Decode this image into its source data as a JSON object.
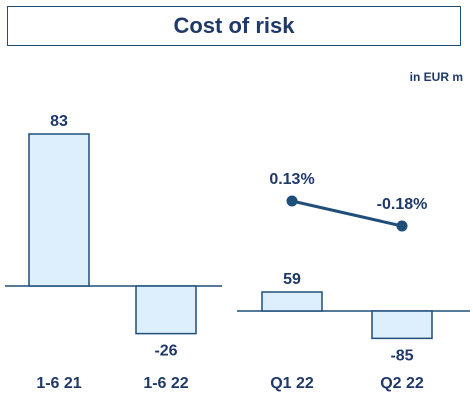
{
  "title": "Cost of risk",
  "unit": "in EUR m",
  "colors": {
    "bar_fill": "#ddeefc",
    "bar_stroke": "#1f4e79",
    "text": "#1f3a68",
    "line": "#1f4e79"
  },
  "chart_data": [
    {
      "type": "bar",
      "categories": [
        "1-6 21",
        "1-6 22"
      ],
      "values": [
        83,
        -26
      ],
      "value_labels": [
        "83",
        "-26"
      ]
    },
    {
      "type": "bar",
      "categories": [
        "Q1 22",
        "Q2 22"
      ],
      "values": [
        59,
        -85
      ],
      "value_labels": [
        "59",
        "-85"
      ],
      "line_series": {
        "values": [
          0.13,
          -0.18
        ],
        "value_labels": [
          "0.13%",
          "-0.18%"
        ]
      }
    }
  ]
}
